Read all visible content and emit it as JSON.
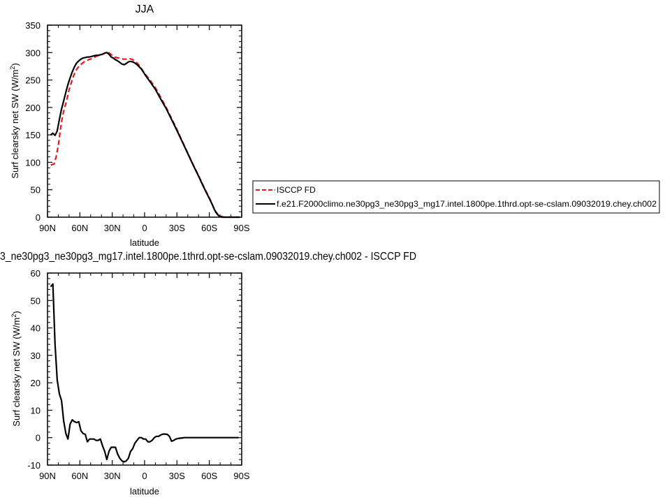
{
  "figure": {
    "top_title": "JJA",
    "bottom_title": "3_ne30pg3_ne30pg3_mg17.intel.1800pe.1thrd.opt-se-cslam.09032019.chey.ch002 - ISCCP FD"
  },
  "legend": {
    "placement": "right of top panel",
    "entries": [
      {
        "label": "ISCCP FD",
        "color": "#e41a1c",
        "dash": "dashed"
      },
      {
        "label": "f.e21.F2000climo.ne30pg3_ne30pg3_mg17.intel.1800pe.1thrd.opt-se-cslam.09032019.chey.ch002",
        "color": "#000000",
        "dash": "solid"
      }
    ]
  },
  "chart_data": [
    {
      "type": "line",
      "title": "JJA",
      "xlabel": "latitude",
      "ylabel_main": "Surf clearsky net SW (W/m",
      "ylabel_sup": "2",
      "ylabel_tail": ")",
      "xlim": [
        90,
        -90
      ],
      "ylim": [
        0,
        350
      ],
      "xticks": [
        90,
        60,
        30,
        0,
        -30,
        -60,
        -90
      ],
      "xtick_labels": [
        "90N",
        "60N",
        "30N",
        "0",
        "30S",
        "60S",
        "90S"
      ],
      "yticks": [
        0,
        50,
        100,
        150,
        200,
        250,
        300,
        350
      ],
      "ytick_labels": [
        "0",
        "50",
        "100",
        "150",
        "200",
        "250",
        "300",
        "350"
      ],
      "grid": false,
      "series": [
        {
          "name": "ISCCP FD",
          "color": "#e41a1c",
          "dash": "dashed",
          "x": [
            87,
            84,
            82,
            80,
            78,
            76,
            74,
            72,
            70,
            68,
            66,
            64,
            62,
            60,
            58,
            56,
            54,
            52,
            50,
            48,
            46,
            44,
            42,
            40,
            38,
            36,
            34,
            32,
            30,
            28,
            26,
            24,
            22,
            20,
            18,
            16,
            14,
            12,
            10,
            8,
            6,
            4,
            2,
            0,
            -5,
            -10,
            -15,
            -20,
            -25,
            -30,
            -35,
            -40,
            -45,
            -50,
            -55,
            -60,
            -62,
            -64,
            -66,
            -68,
            -70,
            -72,
            -74,
            -76,
            -78,
            -80,
            -84,
            -88
          ],
          "y": [
            95,
            97,
            110,
            130,
            160,
            185,
            200,
            215,
            232,
            245,
            257,
            266,
            272,
            277,
            280,
            283,
            285,
            287,
            288,
            290,
            292,
            294,
            295,
            296,
            298,
            300,
            301,
            298,
            295,
            292,
            291,
            290,
            289,
            288,
            288,
            288,
            289,
            288,
            286,
            283,
            279,
            274,
            268,
            262,
            250,
            236,
            218,
            200,
            180,
            160,
            138,
            117,
            96,
            76,
            55,
            35,
            27,
            18,
            10,
            5,
            2,
            1,
            0,
            0,
            0,
            0,
            0,
            0
          ]
        },
        {
          "name": "f.e21.F2000climo.ne30pg3_ne30pg3_mg17.intel.1800pe.1thrd.opt-se-cslam.09032019.chey.ch002",
          "color": "#000000",
          "dash": "solid",
          "x": [
            87,
            85,
            83,
            81,
            79,
            77,
            75,
            73,
            71,
            69,
            67,
            65,
            63,
            61,
            59,
            57,
            55,
            53,
            51,
            49,
            47,
            45,
            43,
            41,
            39,
            37,
            35,
            33,
            31,
            29,
            27,
            25,
            23,
            21,
            19,
            17,
            15,
            13,
            11,
            9,
            7,
            5,
            3,
            1,
            -1,
            -5,
            -10,
            -15,
            -20,
            -25,
            -30,
            -35,
            -40,
            -45,
            -50,
            -55,
            -60,
            -62,
            -64,
            -66,
            -68,
            -70,
            -72,
            -74,
            -76,
            -78,
            -80,
            -84,
            -88
          ],
          "y": [
            150,
            153,
            149,
            157,
            178,
            197,
            212,
            228,
            242,
            254,
            265,
            274,
            281,
            285,
            288,
            290,
            291,
            292,
            292,
            293,
            294,
            295,
            295,
            296,
            297,
            299,
            300,
            297,
            292,
            290,
            287,
            285,
            282,
            279,
            278,
            280,
            283,
            284,
            283,
            281,
            278,
            274,
            270,
            264,
            258,
            247,
            233,
            215,
            198,
            178,
            158,
            137,
            116,
            95,
            75,
            54,
            34,
            26,
            17,
            9,
            4,
            1,
            0,
            0,
            0,
            0,
            0,
            0,
            0
          ]
        }
      ]
    },
    {
      "type": "line",
      "title": "3_ne30pg3_ne30pg3_mg17.intel.1800pe.1thrd.opt-se-cslam.09032019.chey.ch002 - ISCCP FD",
      "xlabel": "latitude",
      "ylabel_main": "Surf clearsky net SW (W/m",
      "ylabel_sup": "2",
      "ylabel_tail": ")",
      "xlim": [
        90,
        -90
      ],
      "ylim": [
        -10,
        60
      ],
      "xticks": [
        90,
        60,
        30,
        0,
        -30,
        -60,
        -90
      ],
      "xtick_labels": [
        "90N",
        "60N",
        "30N",
        "0",
        "30S",
        "60S",
        "90S"
      ],
      "yticks": [
        -10,
        0,
        10,
        20,
        30,
        40,
        50,
        60
      ],
      "ytick_labels": [
        "-10",
        "0",
        "10",
        "20",
        "30",
        "40",
        "50",
        "60"
      ],
      "grid": false,
      "series": [
        {
          "name": "",
          "color": "#000000",
          "dash": "solid",
          "x": [
            87,
            85,
            83,
            81,
            79,
            77,
            75,
            73,
            71,
            69,
            67,
            65,
            63,
            61,
            59,
            57,
            55,
            53,
            51,
            49,
            47,
            45,
            43,
            41,
            39,
            37,
            35,
            33,
            31,
            29,
            27,
            25,
            23,
            21,
            19,
            17,
            15,
            13,
            11,
            9,
            7,
            5,
            3,
            1,
            -1,
            -3,
            -5,
            -7,
            -9,
            -11,
            -13,
            -15,
            -17,
            -19,
            -21,
            -23,
            -25,
            -27,
            -29,
            -31,
            -33,
            -35,
            -37,
            -39,
            -41,
            -43,
            -45,
            -47,
            -49,
            -51,
            -53,
            -55,
            -57,
            -59,
            -61,
            -63,
            -65,
            -67,
            -69,
            -71,
            -73,
            -75,
            -77,
            -79,
            -81,
            -83,
            -85,
            -87
          ],
          "y": [
            55,
            56,
            34,
            21,
            16,
            13.5,
            6,
            1.5,
            -0.5,
            5,
            6.5,
            5.8,
            5.5,
            5.8,
            2.5,
            1.5,
            1.2,
            -1.5,
            -0.5,
            -0.5,
            -0.5,
            -1,
            -1,
            -0.5,
            -3,
            -5,
            -8,
            -5,
            -3.5,
            -3.5,
            -3.5,
            -6,
            -7.5,
            -8.5,
            -8.8,
            -8.5,
            -7.5,
            -5,
            -4,
            -2,
            -1,
            0,
            0,
            -0.5,
            -0.5,
            -1.5,
            -1.5,
            -1,
            0,
            0.5,
            0.5,
            1,
            1.3,
            1.3,
            1.2,
            0.5,
            -1.3,
            -1,
            -0.5,
            -0.3,
            -0.2,
            -0.1,
            0,
            0,
            0,
            0,
            0,
            0,
            0,
            0,
            0,
            0,
            0,
            0,
            0,
            0,
            0,
            0,
            0,
            0,
            0,
            0,
            0,
            0,
            0,
            0,
            0,
            0
          ]
        }
      ]
    }
  ]
}
